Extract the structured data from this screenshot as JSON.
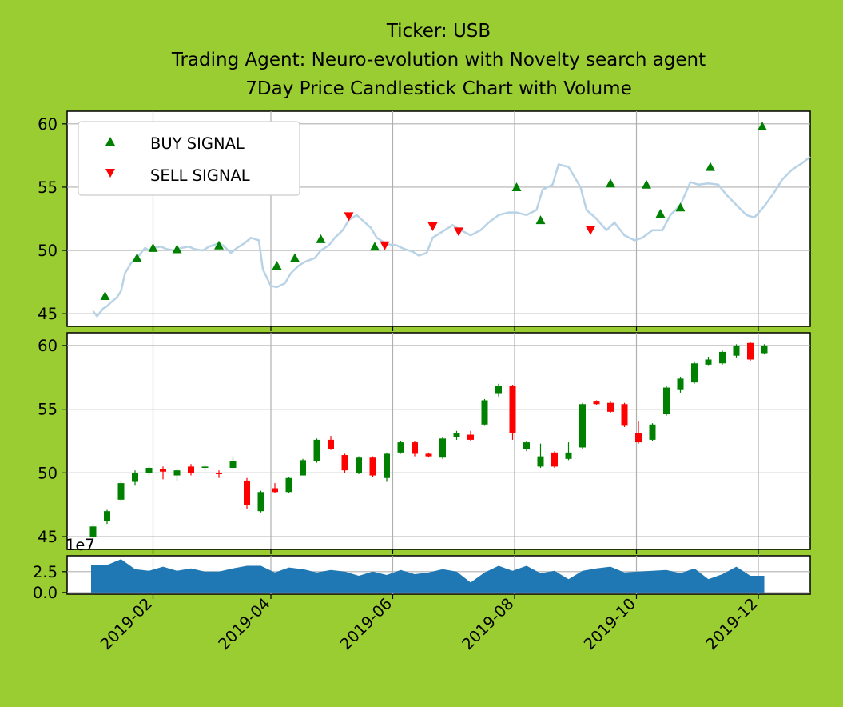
{
  "figure": {
    "background": "#9acd32",
    "title_lines": [
      "Ticker: USB",
      "Trading Agent: Neuro-evolution with Novelty search agent",
      "7Day Price Candlestick Chart with Volume"
    ]
  },
  "chart_data": [
    {
      "type": "line",
      "panel": "price-signals",
      "x_range": [
        "2018-12-20",
        "2019-12-27"
      ],
      "ylim": [
        44.0,
        61.0
      ],
      "y_ticks": [
        45,
        50,
        55,
        60
      ],
      "grid": true,
      "line_color": "#b9d3e6",
      "legend": {
        "placement": "top-left",
        "entries": [
          {
            "label": "BUY SIGNAL",
            "color": "#008000",
            "marker": "triangle-up"
          },
          {
            "label": "SELL SIGNAL",
            "color": "#ff0000",
            "marker": "triangle-down"
          }
        ]
      },
      "price": [
        [
          "2019-01-02",
          45.2
        ],
        [
          "2019-01-04",
          44.8
        ],
        [
          "2019-01-07",
          45.4
        ],
        [
          "2019-01-09",
          45.6
        ],
        [
          "2019-01-11",
          45.9
        ],
        [
          "2019-01-14",
          46.3
        ],
        [
          "2019-01-16",
          46.8
        ],
        [
          "2019-01-18",
          48.2
        ],
        [
          "2019-01-21",
          49.0
        ],
        [
          "2019-01-23",
          49.3
        ],
        [
          "2019-01-25",
          49.6
        ],
        [
          "2019-01-28",
          50.2
        ],
        [
          "2019-01-30",
          50.0
        ],
        [
          "2019-02-01",
          50.2
        ],
        [
          "2019-02-05",
          50.3
        ],
        [
          "2019-02-08",
          50.1
        ],
        [
          "2019-02-12",
          50.0
        ],
        [
          "2019-02-15",
          50.2
        ],
        [
          "2019-02-19",
          50.3
        ],
        [
          "2019-02-22",
          50.1
        ],
        [
          "2019-02-26",
          50.0
        ],
        [
          "2019-03-01",
          50.3
        ],
        [
          "2019-03-05",
          50.5
        ],
        [
          "2019-03-08",
          50.4
        ],
        [
          "2019-03-12",
          49.8
        ],
        [
          "2019-03-15",
          50.2
        ],
        [
          "2019-03-19",
          50.6
        ],
        [
          "2019-03-22",
          51.0
        ],
        [
          "2019-03-26",
          50.8
        ],
        [
          "2019-03-28",
          48.5
        ],
        [
          "2019-04-01",
          47.2
        ],
        [
          "2019-04-04",
          47.1
        ],
        [
          "2019-04-08",
          47.4
        ],
        [
          "2019-04-11",
          48.2
        ],
        [
          "2019-04-15",
          48.8
        ],
        [
          "2019-04-18",
          49.1
        ],
        [
          "2019-04-23",
          49.4
        ],
        [
          "2019-04-26",
          50.0
        ],
        [
          "2019-04-30",
          50.4
        ],
        [
          "2019-05-03",
          51.0
        ],
        [
          "2019-05-07",
          51.6
        ],
        [
          "2019-05-10",
          52.4
        ],
        [
          "2019-05-14",
          52.8
        ],
        [
          "2019-05-16",
          52.5
        ],
        [
          "2019-05-21",
          51.8
        ],
        [
          "2019-05-24",
          51.0
        ],
        [
          "2019-05-29",
          50.5
        ],
        [
          "2019-06-03",
          50.4
        ],
        [
          "2019-06-07",
          50.1
        ],
        [
          "2019-06-11",
          49.9
        ],
        [
          "2019-06-14",
          49.6
        ],
        [
          "2019-06-18",
          49.8
        ],
        [
          "2019-06-21",
          51.0
        ],
        [
          "2019-06-26",
          51.5
        ],
        [
          "2019-07-01",
          52.0
        ],
        [
          "2019-07-05",
          51.6
        ],
        [
          "2019-07-10",
          51.2
        ],
        [
          "2019-07-15",
          51.6
        ],
        [
          "2019-07-19",
          52.2
        ],
        [
          "2019-07-24",
          52.8
        ],
        [
          "2019-07-29",
          53.0
        ],
        [
          "2019-08-02",
          53.0
        ],
        [
          "2019-08-07",
          52.8
        ],
        [
          "2019-08-12",
          53.2
        ],
        [
          "2019-08-15",
          54.8
        ],
        [
          "2019-08-20",
          55.2
        ],
        [
          "2019-08-23",
          56.8
        ],
        [
          "2019-08-28",
          56.6
        ],
        [
          "2019-09-03",
          55.0
        ],
        [
          "2019-09-06",
          53.2
        ],
        [
          "2019-09-11",
          52.5
        ],
        [
          "2019-09-16",
          51.6
        ],
        [
          "2019-09-20",
          52.2
        ],
        [
          "2019-09-25",
          51.2
        ],
        [
          "2019-09-30",
          50.8
        ],
        [
          "2019-10-04",
          51.0
        ],
        [
          "2019-10-09",
          51.6
        ],
        [
          "2019-10-14",
          51.6
        ],
        [
          "2019-10-18",
          52.8
        ],
        [
          "2019-10-23",
          53.6
        ],
        [
          "2019-10-28",
          55.4
        ],
        [
          "2019-11-01",
          55.2
        ],
        [
          "2019-11-06",
          55.3
        ],
        [
          "2019-11-11",
          55.2
        ],
        [
          "2019-11-15",
          54.4
        ],
        [
          "2019-11-20",
          53.6
        ],
        [
          "2019-11-25",
          52.8
        ],
        [
          "2019-11-29",
          52.6
        ],
        [
          "2019-12-04",
          53.5
        ],
        [
          "2019-12-09",
          54.6
        ],
        [
          "2019-12-13",
          55.6
        ],
        [
          "2019-12-18",
          56.4
        ],
        [
          "2019-12-23",
          56.9
        ],
        [
          "2019-12-27",
          57.4
        ]
      ],
      "buy_signals": [
        [
          "2019-01-08",
          46.4
        ],
        [
          "2019-01-24",
          49.4
        ],
        [
          "2019-02-01",
          50.2
        ],
        [
          "2019-02-13",
          50.1
        ],
        [
          "2019-03-06",
          50.4
        ],
        [
          "2019-04-04",
          48.8
        ],
        [
          "2019-04-13",
          49.4
        ],
        [
          "2019-04-26",
          50.9
        ],
        [
          "2019-05-23",
          50.3
        ],
        [
          "2019-08-02",
          55.0
        ],
        [
          "2019-08-14",
          52.4
        ],
        [
          "2019-09-18",
          55.3
        ],
        [
          "2019-10-06",
          55.2
        ],
        [
          "2019-10-13",
          52.9
        ],
        [
          "2019-10-23",
          53.4
        ],
        [
          "2019-11-07",
          56.6
        ],
        [
          "2019-12-03",
          59.8
        ]
      ],
      "sell_signals": [
        [
          "2019-05-10",
          52.7
        ],
        [
          "2019-05-28",
          50.4
        ],
        [
          "2019-06-21",
          51.9
        ],
        [
          "2019-07-04",
          51.5
        ],
        [
          "2019-09-08",
          51.6
        ]
      ]
    },
    {
      "type": "candlestick",
      "panel": "candles",
      "ylim": [
        44.0,
        61.0
      ],
      "y_ticks": [
        45,
        50,
        55,
        60
      ],
      "grid": true,
      "up_color": "#008000",
      "down_color": "#ff0000",
      "candles": [
        [
          "2019-01-02",
          45.0,
          45.8,
          44.8,
          46.0
        ],
        [
          "2019-01-09",
          46.2,
          47.0,
          46.0,
          47.1
        ],
        [
          "2019-01-16",
          47.9,
          49.2,
          47.8,
          49.4
        ],
        [
          "2019-01-23",
          49.3,
          50.0,
          49.0,
          50.2
        ],
        [
          "2019-01-30",
          50.0,
          50.4,
          49.8,
          50.5
        ],
        [
          "2019-02-06",
          50.3,
          50.1,
          49.5,
          50.5
        ],
        [
          "2019-02-13",
          49.8,
          50.2,
          49.4,
          50.3
        ],
        [
          "2019-02-20",
          50.5,
          50.0,
          49.8,
          50.7
        ],
        [
          "2019-02-27",
          50.4,
          50.5,
          50.2,
          50.6
        ],
        [
          "2019-03-06",
          50.0,
          49.9,
          49.6,
          50.2
        ],
        [
          "2019-03-13",
          50.4,
          50.9,
          50.3,
          51.3
        ],
        [
          "2019-03-20",
          49.4,
          47.5,
          47.2,
          49.6
        ],
        [
          "2019-03-27",
          47.0,
          48.5,
          46.9,
          48.6
        ],
        [
          "2019-04-03",
          48.8,
          48.5,
          48.4,
          49.2
        ],
        [
          "2019-04-10",
          48.5,
          49.6,
          48.4,
          49.7
        ],
        [
          "2019-04-17",
          49.8,
          51.0,
          49.8,
          51.1
        ],
        [
          "2019-04-24",
          50.9,
          52.6,
          50.8,
          52.7
        ],
        [
          "2019-05-01",
          52.6,
          51.9,
          51.8,
          52.9
        ],
        [
          "2019-05-08",
          51.4,
          50.2,
          50.0,
          51.5
        ],
        [
          "2019-05-15",
          50.0,
          51.2,
          49.9,
          51.3
        ],
        [
          "2019-05-22",
          51.2,
          49.8,
          49.7,
          51.3
        ],
        [
          "2019-05-29",
          49.6,
          51.5,
          49.3,
          51.6
        ],
        [
          "2019-06-05",
          51.6,
          52.4,
          51.5,
          52.5
        ],
        [
          "2019-06-12",
          52.4,
          51.5,
          51.3,
          52.5
        ],
        [
          "2019-06-19",
          51.5,
          51.3,
          51.2,
          51.6
        ],
        [
          "2019-06-26",
          51.2,
          52.7,
          51.1,
          52.8
        ],
        [
          "2019-07-03",
          52.8,
          53.1,
          52.6,
          53.3
        ],
        [
          "2019-07-10",
          53.0,
          52.6,
          52.5,
          53.3
        ],
        [
          "2019-07-17",
          53.8,
          55.7,
          53.7,
          55.8
        ],
        [
          "2019-07-24",
          56.2,
          56.8,
          56.0,
          57.0
        ],
        [
          "2019-07-31",
          56.8,
          53.1,
          52.6,
          56.9
        ],
        [
          "2019-08-07",
          51.9,
          52.4,
          51.7,
          52.5
        ],
        [
          "2019-08-14",
          50.5,
          51.3,
          50.4,
          52.3
        ],
        [
          "2019-08-21",
          51.6,
          50.5,
          50.4,
          51.7
        ],
        [
          "2019-08-28",
          51.1,
          51.6,
          51.0,
          52.4
        ],
        [
          "2019-09-04",
          52.0,
          55.4,
          51.9,
          55.5
        ],
        [
          "2019-09-11",
          55.6,
          55.4,
          55.3,
          55.7
        ],
        [
          "2019-09-18",
          55.5,
          54.8,
          54.7,
          55.6
        ],
        [
          "2019-09-25",
          55.4,
          53.7,
          53.6,
          55.5
        ],
        [
          "2019-10-02",
          53.1,
          52.4,
          52.3,
          54.1
        ],
        [
          "2019-10-09",
          52.6,
          53.8,
          52.5,
          53.9
        ],
        [
          "2019-10-16",
          54.6,
          56.7,
          54.5,
          56.8
        ],
        [
          "2019-10-23",
          56.5,
          57.4,
          56.3,
          57.5
        ],
        [
          "2019-10-30",
          57.1,
          58.6,
          57.0,
          58.7
        ],
        [
          "2019-11-06",
          58.5,
          58.9,
          58.4,
          59.1
        ],
        [
          "2019-11-13",
          58.6,
          59.5,
          58.5,
          59.6
        ],
        [
          "2019-11-20",
          59.2,
          60.0,
          59.0,
          60.1
        ],
        [
          "2019-11-27",
          60.2,
          58.9,
          58.8,
          60.3
        ],
        [
          "2019-12-04",
          59.4,
          60.0,
          59.3,
          60.1
        ]
      ]
    },
    {
      "type": "area",
      "panel": "volume",
      "ylim": [
        -0.2,
        4.4
      ],
      "y_ticks": [
        0.0,
        2.5
      ],
      "y_tick_labels": [
        "0.0",
        "2.5"
      ],
      "offset_text": "1e7",
      "grid": true,
      "color": "#1f77b4",
      "x_ticks": [
        "2019-02-01",
        "2019-04-01",
        "2019-06-01",
        "2019-08-01",
        "2019-10-01",
        "2019-12-01"
      ],
      "x_tick_labels": [
        "2019-02",
        "2019-04",
        "2019-06",
        "2019-08",
        "2019-10",
        "2019-12"
      ],
      "volume": [
        [
          "2019-01-01",
          3.3
        ],
        [
          "2019-01-09",
          3.3
        ],
        [
          "2019-01-16",
          4.0
        ],
        [
          "2019-01-23",
          2.8
        ],
        [
          "2019-01-30",
          2.6
        ],
        [
          "2019-02-06",
          3.1
        ],
        [
          "2019-02-13",
          2.6
        ],
        [
          "2019-02-20",
          2.9
        ],
        [
          "2019-02-27",
          2.5
        ],
        [
          "2019-03-06",
          2.5
        ],
        [
          "2019-03-13",
          2.9
        ],
        [
          "2019-03-20",
          3.2
        ],
        [
          "2019-03-27",
          3.2
        ],
        [
          "2019-04-03",
          2.4
        ],
        [
          "2019-04-10",
          3.0
        ],
        [
          "2019-04-17",
          2.8
        ],
        [
          "2019-04-24",
          2.4
        ],
        [
          "2019-05-01",
          2.7
        ],
        [
          "2019-05-08",
          2.5
        ],
        [
          "2019-05-15",
          2.0
        ],
        [
          "2019-05-22",
          2.5
        ],
        [
          "2019-05-29",
          2.1
        ],
        [
          "2019-06-05",
          2.7
        ],
        [
          "2019-06-12",
          2.2
        ],
        [
          "2019-06-19",
          2.4
        ],
        [
          "2019-06-26",
          2.8
        ],
        [
          "2019-07-03",
          2.5
        ],
        [
          "2019-07-10",
          1.2
        ],
        [
          "2019-07-17",
          2.4
        ],
        [
          "2019-07-24",
          3.2
        ],
        [
          "2019-07-31",
          2.6
        ],
        [
          "2019-08-07",
          3.2
        ],
        [
          "2019-08-14",
          2.3
        ],
        [
          "2019-08-21",
          2.6
        ],
        [
          "2019-08-28",
          1.6
        ],
        [
          "2019-09-04",
          2.6
        ],
        [
          "2019-09-11",
          2.9
        ],
        [
          "2019-09-18",
          3.1
        ],
        [
          "2019-09-25",
          2.4
        ],
        [
          "2019-10-02",
          2.5
        ],
        [
          "2019-10-09",
          2.6
        ],
        [
          "2019-10-16",
          2.7
        ],
        [
          "2019-10-23",
          2.3
        ],
        [
          "2019-10-30",
          2.9
        ],
        [
          "2019-11-06",
          1.6
        ],
        [
          "2019-11-13",
          2.2
        ],
        [
          "2019-11-20",
          3.1
        ],
        [
          "2019-11-27",
          2.0
        ],
        [
          "2019-12-04",
          2.0
        ]
      ]
    }
  ]
}
